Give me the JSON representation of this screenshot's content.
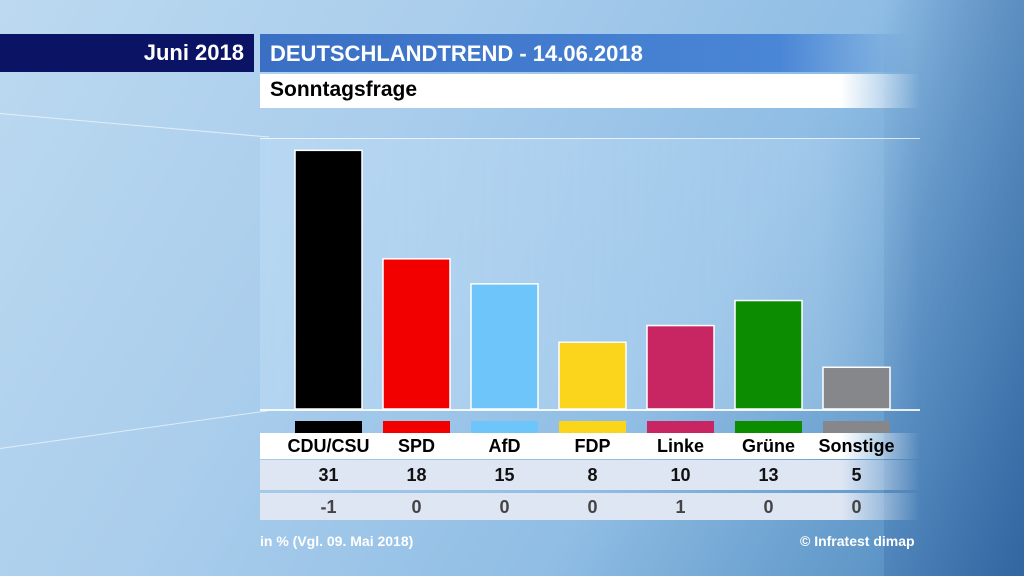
{
  "header": {
    "date_label": "Juni 2018",
    "title": "DEUTSCHLANDTREND - 14.06.2018",
    "subtitle": "Sonntagsfrage"
  },
  "footer": {
    "note": "in % (Vgl. 09. Mai 2018)",
    "source": "© Infratest dimap"
  },
  "chart_data": {
    "type": "bar",
    "title": "Sonntagsfrage",
    "categories": [
      "CDU/CSU",
      "SPD",
      "AfD",
      "FDP",
      "Linke",
      "Grüne",
      "Sonstige"
    ],
    "values": [
      31,
      18,
      15,
      8,
      10,
      13,
      5
    ],
    "changes": [
      "-1",
      "0",
      "0",
      "0",
      "1",
      "0",
      "0"
    ],
    "colors": [
      "#000000",
      "#f20000",
      "#6ec5fa",
      "#fad51c",
      "#c82563",
      "#0c8c00",
      "#85878a"
    ],
    "ylabel": "in %",
    "ylim": [
      0,
      32
    ]
  }
}
